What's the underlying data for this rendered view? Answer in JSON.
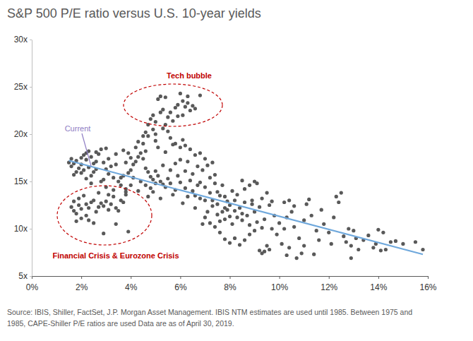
{
  "chart_data": {
    "type": "scatter",
    "title": "S&P 500 P/E ratio versus U.S. 10-year yields",
    "source": [
      "Source: IBIS, Shiller, FactSet, J.P. Morgan Asset Management. IBIS NTM estimates are used until 1985. Between 1975 and",
      "1985, CAPE-Shiller P/E ratios are used Data are as of April 30, 2019."
    ],
    "xlim": [
      0,
      16
    ],
    "xticks": [
      {
        "value": 0,
        "label": "0%"
      },
      {
        "value": 2,
        "label": "2%"
      },
      {
        "value": 4,
        "label": "4%"
      },
      {
        "value": 6,
        "label": "6%"
      },
      {
        "value": 8,
        "label": "8%"
      },
      {
        "value": 10,
        "label": "10%"
      },
      {
        "value": 12,
        "label": "12%"
      },
      {
        "value": 14,
        "label": "14%"
      },
      {
        "value": 16,
        "label": "16%"
      }
    ],
    "ylim": [
      5,
      30
    ],
    "yticks": [
      {
        "value": 5,
        "label": "5x"
      },
      {
        "value": 10,
        "label": "10x"
      },
      {
        "value": 15,
        "label": "15x"
      },
      {
        "value": 20,
        "label": "20x"
      },
      {
        "value": 25,
        "label": "25x"
      },
      {
        "value": 30,
        "label": "30x"
      }
    ],
    "grid": false,
    "annotations": [
      {
        "text": "Tech bubble",
        "color": "#c00000"
      },
      {
        "text": "Financial Crisis & Eurozone Crisis",
        "color": "#c00000"
      },
      {
        "text": "Current",
        "color": "#8e7cc3",
        "x": 2.4,
        "y": 16.6
      }
    ],
    "series": [
      {
        "type": "scatter",
        "color": "#595959",
        "x": [
          1.5,
          1.6,
          1.7,
          1.8,
          1.9,
          2.0,
          2.0,
          2.1,
          2.2,
          2.2,
          2.3,
          2.3,
          2.4,
          2.5,
          2.5,
          2.6,
          2.7,
          2.8,
          2.9,
          2.6,
          2.1,
          1.8,
          3.0,
          3.1,
          3.2,
          3.3,
          3.0,
          2.4,
          2.9,
          3.4,
          3.5,
          3.6,
          3.8,
          3.7,
          3.9,
          4.0,
          4.1,
          4.2,
          4.3,
          4.4,
          4.5,
          4.6,
          4.7,
          4.8,
          4.9,
          5.0,
          4.2,
          4.3,
          4.5,
          4.6,
          4.0,
          3.9,
          3.8,
          4.1,
          4.4,
          4.6,
          4.8,
          5.0,
          5.1,
          5.2,
          5.3,
          5.4,
          5.5,
          5.6,
          5.8,
          5.9,
          6.0,
          6.2,
          6.4,
          6.5,
          6.6,
          6.7,
          6.8,
          7.0,
          7.2,
          7.3,
          7.4,
          7.5,
          7.6,
          7.8,
          7.9,
          4.8,
          4.9,
          5.0,
          5.1,
          5.2,
          5.3,
          5.4,
          5.5,
          5.6,
          5.7,
          5.8,
          5.9,
          6.0,
          6.1,
          6.2,
          6.3,
          6.4,
          6.5,
          6.6,
          6.8,
          5.3,
          5.0,
          5.6,
          5.4,
          5.2,
          5.9,
          6.1,
          6.3,
          5.0,
          4.9,
          4.7,
          4.6,
          5.5,
          5.8,
          6.0,
          6.2,
          6.4,
          6.1,
          6.6,
          6.8,
          7.0,
          7.1,
          6.9,
          7.2,
          7.3,
          1.6,
          1.7,
          1.8,
          1.9,
          2.0,
          2.0,
          2.1,
          2.2,
          2.2,
          2.3,
          2.4,
          2.5,
          1.7,
          1.9,
          2.6,
          2.7,
          2.8,
          2.9,
          3.0,
          3.1,
          3.2,
          3.3,
          3.4,
          3.5,
          3.6,
          3.7,
          3.8,
          3.9,
          2.9,
          2.5,
          2.3,
          3.4,
          2.7,
          3.1,
          1.8,
          7.5,
          7.6,
          7.7,
          7.8,
          7.9,
          8.0,
          8.0,
          8.1,
          8.2,
          8.3,
          8.4,
          8.5,
          8.5,
          8.6,
          8.7,
          8.8,
          8.9,
          9.0,
          9.1,
          9.2,
          9.3,
          9.4,
          8.2,
          8.4,
          8.6,
          8.8,
          9.0,
          9.2,
          9.3,
          9.4,
          9.5,
          9.6,
          7.2,
          7.4,
          7.6,
          7.8,
          8.0,
          7.1,
          7.3,
          7.0,
          7.5,
          7.8,
          8.1,
          8.3,
          8.6,
          8.9,
          9.1,
          9.3,
          9.6,
          9.8,
          10.0,
          9.7,
          9.9,
          10.2,
          10.3,
          10.4,
          10.5,
          10.1,
          10.3,
          10.4,
          10.6,
          10.8,
          10.9,
          10.7,
          11.0,
          11.1,
          11.2,
          11.3,
          11.0,
          11.4,
          11.5,
          11.6,
          11.8,
          12.0,
          12.2,
          12.3,
          12.4,
          12.5,
          12.6,
          12.7,
          12.8,
          12.9,
          13.0,
          13.1,
          13.2,
          12.9,
          13.4,
          13.6,
          13.8,
          13.9,
          14.0,
          14.1,
          14.2,
          14.3,
          14.5,
          14.7,
          15.0,
          15.5,
          15.8,
          12.1,
          11.7,
          10.6,
          10.2,
          5.6,
          5.8,
          6.0,
          6.2,
          6.5,
          6.8,
          6.3,
          6.1,
          6.6,
          6.9,
          7.0,
          5.7,
          5.2,
          4.9,
          4.7,
          5.3,
          4.3,
          4.0,
          3.8,
          3.6,
          3.3,
          3.0,
          2.8,
          2.4,
          2.6,
          3.1,
          3.4,
          2.0,
          1.6,
          1.7,
          2.2,
          3.7,
          4.7,
          4.5,
          5.1,
          5.4,
          5.7,
          6.3,
          6.7,
          7.4,
          7.7,
          8.2,
          8.5,
          8.8,
          9.5,
          9.7,
          9.0
        ],
        "values": [
          17.0,
          16.6,
          16.9,
          17.2,
          16.4,
          16.8,
          17.5,
          17.8,
          18.0,
          17.3,
          18.2,
          16.5,
          17.6,
          16.9,
          16.0,
          16.3,
          17.9,
          18.4,
          17.0,
          18.1,
          16.2,
          16.0,
          16.3,
          15.8,
          16.6,
          15.4,
          18.5,
          15.6,
          15.2,
          16.8,
          15.0,
          14.6,
          14.2,
          15.6,
          15.9,
          16.2,
          16.8,
          17.1,
          17.6,
          18.0,
          17.4,
          16.4,
          16.0,
          15.5,
          15.2,
          14.8,
          18.6,
          19.2,
          19.0,
          18.2,
          17.5,
          18.0,
          17.0,
          15.4,
          15.0,
          14.6,
          14.3,
          16.1,
          15.6,
          15.0,
          14.7,
          14.4,
          15.3,
          14.8,
          14.1,
          15.6,
          14.9,
          14.3,
          15.1,
          14.0,
          13.5,
          14.6,
          13.2,
          14.4,
          13.8,
          13.0,
          14.8,
          12.6,
          13.5,
          12.2,
          12.9,
          21.6,
          22.0,
          21.3,
          23.7,
          24.0,
          22.6,
          23.9,
          21.8,
          22.3,
          21.4,
          22.8,
          23.1,
          24.3,
          23.5,
          22.9,
          23.3,
          22.5,
          23.0,
          22.7,
          24.1,
          20.6,
          20.0,
          19.6,
          21.0,
          22.3,
          21.9,
          22.0,
          24.0,
          19.3,
          20.5,
          19.8,
          20.2,
          20.3,
          19.0,
          18.6,
          18.8,
          18.4,
          19.4,
          17.8,
          18.0,
          17.4,
          16.7,
          16.2,
          15.4,
          17.0,
          12.3,
          12.9,
          11.6,
          13.2,
          12.1,
          11.1,
          13.5,
          12.6,
          11.4,
          10.9,
          12.8,
          13.0,
          11.9,
          12.5,
          11.8,
          12.3,
          12.7,
          12.4,
          12.9,
          12.0,
          12.6,
          13.4,
          12.2,
          11.9,
          13.0,
          12.8,
          13.9,
          9.7,
          9.5,
          10.6,
          12.2,
          10.5,
          13.8,
          13.6,
          10.8,
          11.5,
          10.8,
          11.8,
          11.0,
          12.0,
          11.3,
          12.5,
          10.5,
          11.9,
          11.2,
          12.2,
          10.9,
          11.6,
          12.8,
          11.4,
          10.4,
          12.6,
          11.8,
          10.7,
          12.3,
          10.1,
          11.0,
          9.0,
          8.3,
          8.8,
          9.4,
          9.8,
          7.7,
          7.4,
          7.6,
          8.2,
          7.8,
          10.6,
          10.2,
          9.6,
          8.9,
          8.5,
          11.8,
          12.4,
          13.0,
          13.9,
          13.4,
          14.0,
          13.6,
          14.2,
          13.0,
          14.8,
          13.2,
          12.5,
          11.4,
          10.6,
          10.0,
          9.4,
          12.8,
          11.2,
          13.0,
          11.8,
          8.4,
          7.2,
          8.0,
          10.2,
          9.0,
          7.4,
          6.9,
          10.9,
          12.6,
          13.1,
          11.4,
          8.2,
          7.3,
          9.8,
          8.8,
          10.5,
          9.6,
          11.2,
          13.4,
          12.8,
          13.8,
          9.2,
          8.6,
          10.0,
          8.2,
          9.8,
          9.0,
          7.8,
          6.9,
          8.8,
          9.3,
          8.0,
          8.4,
          9.9,
          7.7,
          9.6,
          7.8,
          8.6,
          8.7,
          8.4,
          8.6,
          7.8,
          8.4,
          12.0,
          12.4,
          10.0,
          16.2,
          16.9,
          17.3,
          16.1,
          15.8,
          14.9,
          13.4,
          12.7,
          12.2,
          10.5,
          11.2,
          13.6,
          13.2,
          13.9,
          13.4,
          16.7,
          14.0,
          14.6,
          13.6,
          15.4,
          14.1,
          14.4,
          15.0,
          14.8,
          17.1,
          17.4,
          17.9,
          15.9,
          17.4,
          15.7,
          15.3,
          18.3,
          21.0,
          19.8,
          18.6,
          18.1,
          18.9,
          17.1,
          16.6,
          15.7,
          14.6,
          13.0,
          15.1,
          14.6,
          13.8,
          12.9,
          15.0
        ]
      },
      {
        "type": "line",
        "color": "#6fa8dc",
        "x": [
          1.5,
          15.8
        ],
        "values": [
          17.2,
          7.3
        ]
      }
    ]
  }
}
